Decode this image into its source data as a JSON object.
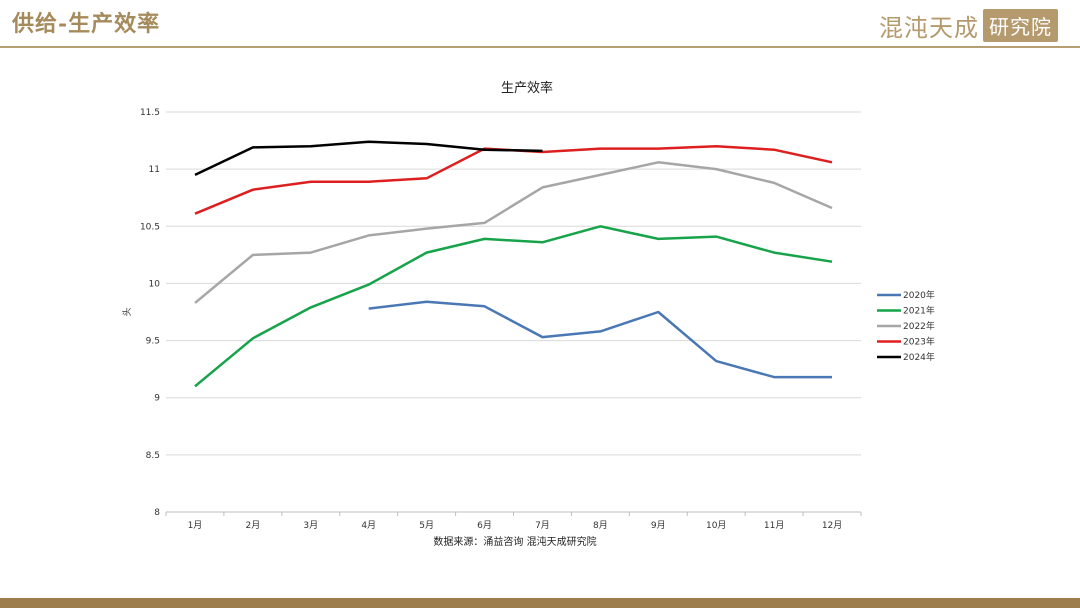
{
  "header": {
    "title": "供给-生产效率",
    "brand_name": "混沌天成",
    "brand_seal": "研究院"
  },
  "colors": {
    "accent": "#a58a5b",
    "footer": "#9c7d4b"
  },
  "source_note": "数据来源：涌益咨询 混沌天成研究院",
  "chart_data": {
    "type": "line",
    "title": "生产效率",
    "ylabel": "头",
    "xlabel": "",
    "ylim": [
      8,
      11.5
    ],
    "yticks": [
      "8",
      "8.5",
      "9",
      "9.5",
      "10",
      "10.5",
      "11",
      "11.5"
    ],
    "categories": [
      "1月",
      "2月",
      "3月",
      "4月",
      "5月",
      "6月",
      "7月",
      "8月",
      "9月",
      "10月",
      "11月",
      "12月"
    ],
    "grid": "horizontal",
    "legend_position": "right",
    "series": [
      {
        "name": "2020年",
        "color": "#4a78b5",
        "values": [
          null,
          null,
          null,
          9.78,
          9.84,
          9.8,
          9.53,
          9.58,
          9.75,
          9.32,
          9.18,
          9.18
        ]
      },
      {
        "name": "2021年",
        "color": "#16a34a",
        "values": [
          9.1,
          9.52,
          9.79,
          9.99,
          10.27,
          10.39,
          10.36,
          10.5,
          10.39,
          10.41,
          10.27,
          10.19
        ]
      },
      {
        "name": "2022年",
        "color": "#a6a6a6",
        "values": [
          9.83,
          10.25,
          10.27,
          10.42,
          10.48,
          10.53,
          10.84,
          10.95,
          11.06,
          11.0,
          10.88,
          10.66
        ]
      },
      {
        "name": "2023年",
        "color": "#dd1f1f",
        "values": [
          10.61,
          10.82,
          10.89,
          10.89,
          10.92,
          11.18,
          11.15,
          11.18,
          11.18,
          11.2,
          11.17,
          11.06
        ]
      },
      {
        "name": "2024年",
        "color": "#000000",
        "values": [
          10.95,
          11.19,
          11.2,
          11.24,
          11.22,
          11.17,
          11.16,
          null,
          null,
          null,
          null,
          null
        ]
      }
    ]
  }
}
